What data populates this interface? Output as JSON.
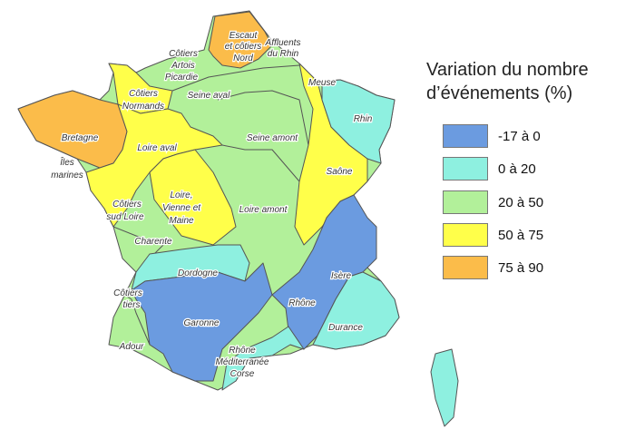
{
  "legend": {
    "title_line1": "Variation du nombre",
    "title_line2": "d’événements (%)",
    "classes": [
      {
        "label": "-17 à 0",
        "color": "#6b9be0"
      },
      {
        "label": "0 à 20",
        "color": "#8ef0e0"
      },
      {
        "label": "20 à 50",
        "color": "#b2f09a"
      },
      {
        "label": "50 à 75",
        "color": "#ffff4a"
      },
      {
        "label": "75 à 90",
        "color": "#fbbc4a"
      }
    ]
  },
  "regions": {
    "escaut": {
      "l1": "Escaut",
      "l2": "et côtiers",
      "l3": "Nord",
      "class": "75 à 90"
    },
    "affluents_rhin": {
      "l1": "Affluents",
      "l2": "du Rhin"
    },
    "artois": {
      "l1": "Côtiers",
      "l2": "Artois",
      "l3": "Picardie",
      "class": "20 à 50"
    },
    "normands": {
      "l1": "Côtiers",
      "l2": "Normands",
      "class": "50 à 75"
    },
    "seine_aval": {
      "l1": "Seine aval",
      "class": "20 à 50"
    },
    "meuse": {
      "l1": "Meuse",
      "class": "50 à 75"
    },
    "rhin": {
      "l1": "Rhin",
      "class": "0 à 20"
    },
    "bretagne": {
      "l1": "Bretagne",
      "class": "75 à 90"
    },
    "iles": {
      "l1": "Îles",
      "l2": "marines"
    },
    "loire_aval": {
      "l1": "Loire aval",
      "class": "50 à 75"
    },
    "seine_amont": {
      "l1": "Seine amont",
      "class": "20 à 50"
    },
    "saone": {
      "l1": "Saône",
      "class": "50 à 75"
    },
    "sud_loire": {
      "l1": "Côtiers",
      "l2": "sud Loire",
      "class": "20 à 50"
    },
    "lvm": {
      "l1": "Loire,",
      "l2": "Vienne et",
      "l3": "Maine",
      "class": "50 à 75"
    },
    "loire_amont": {
      "l1": "Loire amont",
      "class": "20 à 50"
    },
    "charente": {
      "l1": "Charente",
      "class": "20 à 50"
    },
    "dordogne": {
      "l1": "Dordogne",
      "class": "0 à 20"
    },
    "isere": {
      "l1": "Isère",
      "class": "-17 à 0"
    },
    "cotiers_tiers": {
      "l1": "Côtiers",
      "l2": "tiers",
      "class": "20 à 50"
    },
    "rhone": {
      "l1": "Rhône",
      "class": "-17 à 0"
    },
    "garonne": {
      "l1": "Garonne",
      "class": "-17 à 0"
    },
    "durance": {
      "l1": "Durance",
      "class": "0 à 20"
    },
    "adour": {
      "l1": "Adour",
      "class": "20 à 50"
    },
    "rmc": {
      "l1": "Rhône",
      "l2": "Méditerranée",
      "l3": "Corse",
      "class": "0 à 20"
    }
  }
}
